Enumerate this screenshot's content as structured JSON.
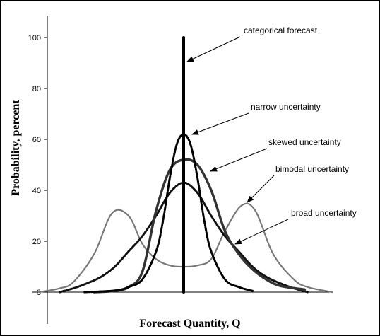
{
  "chart_data": {
    "type": "line",
    "xlabel": "Forecast Quantity, Q",
    "ylabel": "Probability, percent",
    "ylim": [
      0,
      100
    ],
    "yticks": [
      0,
      20,
      40,
      60,
      80,
      100
    ],
    "xlim": [
      -10,
      10
    ],
    "grid": false,
    "series": [
      {
        "name": "categorical forecast",
        "style": "solid-thick",
        "x": [
          0,
          0
        ],
        "y": [
          0,
          100
        ]
      },
      {
        "name": "narrow uncertainty",
        "style": "dash-dot",
        "x": [
          -7.2,
          -5,
          -4,
          -3,
          -2,
          -1.5,
          -1,
          -0.5,
          0,
          0.5,
          1,
          1.5,
          2,
          3,
          4,
          5
        ],
        "y": [
          0,
          0.6,
          2,
          5,
          16,
          28,
          45,
          58,
          62,
          58,
          45,
          28,
          16,
          5,
          2,
          0.5
        ]
      },
      {
        "name": "skewed uncertainty",
        "style": "hatched",
        "x": [
          -6.5,
          -5,
          -4,
          -3,
          -2,
          -1,
          0,
          1,
          2,
          3,
          4,
          5,
          6,
          7,
          8.8
        ],
        "y": [
          0,
          0.5,
          2,
          8,
          32,
          48,
          52,
          50,
          40,
          24,
          15,
          9,
          5,
          2.5,
          1
        ]
      },
      {
        "name": "bimodal uncertainty",
        "style": "dotted-gray",
        "x": [
          -10.5,
          -9,
          -8,
          -6.5,
          -5.2,
          -4,
          -3,
          -2,
          -1,
          0,
          1,
          2,
          3,
          4.2,
          5.2,
          6.5,
          8,
          9,
          10.8
        ],
        "y": [
          0,
          1.5,
          4,
          15,
          31,
          30,
          19,
          13,
          10.5,
          10,
          10.5,
          13,
          24,
          34,
          32,
          15,
          5,
          2,
          0
        ]
      },
      {
        "name": "broad uncertainty",
        "style": "dashed-heavy",
        "x": [
          -9,
          -8,
          -7,
          -6,
          -5,
          -4,
          -3,
          -2,
          -1,
          0,
          1,
          2,
          3,
          4,
          5,
          6,
          7,
          8,
          9
        ],
        "y": [
          0,
          1.5,
          3.5,
          6,
          10,
          16,
          22,
          30,
          39,
          43,
          39,
          30,
          22,
          16,
          10,
          6,
          3.5,
          1.5,
          0
        ]
      }
    ],
    "annotations": [
      {
        "text": "categorical forecast",
        "target": "categorical forecast"
      },
      {
        "text": "narrow uncertainty",
        "target": "narrow uncertainty"
      },
      {
        "text": "skewed uncertainty",
        "target": "skewed uncertainty"
      },
      {
        "text": "bimodal uncertainty",
        "target": "bimodal uncertainty"
      },
      {
        "text": "broad uncertainty",
        "target": "broad uncertainty"
      }
    ]
  }
}
